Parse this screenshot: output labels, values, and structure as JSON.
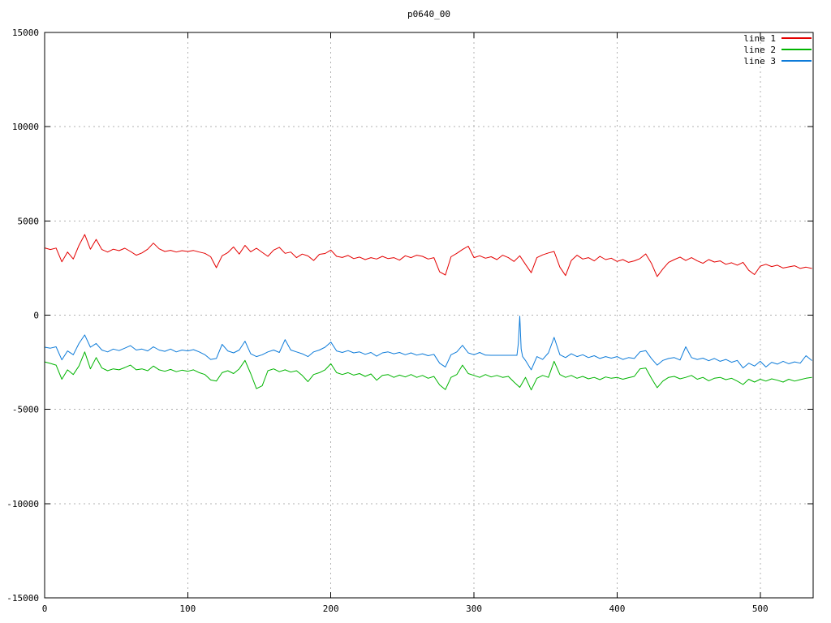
{
  "chart_data": {
    "type": "line",
    "title": "p0640_00",
    "xlabel": "",
    "ylabel": "",
    "xlim": [
      0,
      537
    ],
    "ylim": [
      -15000,
      15000
    ],
    "x_ticks": [
      0,
      100,
      200,
      300,
      400,
      500
    ],
    "y_ticks": [
      -15000,
      -10000,
      -5000,
      0,
      5000,
      10000,
      15000
    ],
    "grid": true,
    "grid_color": "#b0b0b0",
    "border_color": "#000000",
    "text_color": "#000000",
    "background": "#ffffff",
    "legend_position": "top-right-inside",
    "x": [
      0,
      4,
      8,
      12,
      16,
      20,
      24,
      28,
      32,
      36,
      40,
      44,
      48,
      52,
      56,
      60,
      64,
      68,
      72,
      76,
      80,
      84,
      88,
      92,
      96,
      100,
      104,
      108,
      112,
      116,
      120,
      124,
      128,
      132,
      136,
      140,
      144,
      148,
      152,
      156,
      160,
      164,
      168,
      172,
      176,
      180,
      184,
      188,
      192,
      196,
      200,
      204,
      208,
      212,
      216,
      220,
      224,
      228,
      232,
      236,
      240,
      244,
      248,
      252,
      256,
      260,
      264,
      268,
      272,
      276,
      280,
      284,
      288,
      292,
      296,
      300,
      304,
      308,
      312,
      316,
      320,
      324,
      328,
      332,
      336,
      340,
      344,
      348,
      352,
      356,
      360,
      364,
      368,
      372,
      376,
      380,
      384,
      388,
      392,
      396,
      400,
      404,
      408,
      412,
      416,
      420,
      424,
      428,
      432,
      436,
      440,
      444,
      448,
      452,
      456,
      460,
      464,
      468,
      472,
      476,
      480,
      484,
      488,
      492,
      496,
      500,
      504,
      508,
      512,
      516,
      520,
      524,
      528,
      532,
      536
    ],
    "series": [
      {
        "name": "line 1",
        "color": "#e40000",
        "y": [
          3570,
          3480,
          3560,
          2830,
          3350,
          2980,
          3700,
          4280,
          3500,
          4020,
          3480,
          3350,
          3500,
          3420,
          3550,
          3380,
          3180,
          3300,
          3500,
          3820,
          3520,
          3380,
          3440,
          3350,
          3420,
          3380,
          3430,
          3350,
          3280,
          3100,
          2520,
          3150,
          3320,
          3620,
          3240,
          3700,
          3360,
          3550,
          3330,
          3120,
          3450,
          3600,
          3280,
          3350,
          3050,
          3240,
          3140,
          2900,
          3230,
          3270,
          3450,
          3120,
          3060,
          3170,
          3000,
          3080,
          2950,
          3050,
          2980,
          3120,
          3000,
          3050,
          2920,
          3150,
          3050,
          3180,
          3120,
          2980,
          3050,
          2300,
          2130,
          3100,
          3280,
          3480,
          3660,
          3050,
          3150,
          3020,
          3100,
          2950,
          3180,
          3050,
          2850,
          3150,
          2700,
          2250,
          3050,
          3200,
          3300,
          3380,
          2550,
          2100,
          2900,
          3180,
          2980,
          3050,
          2880,
          3120,
          2950,
          3020,
          2850,
          2950,
          2800,
          2880,
          3000,
          3250,
          2750,
          2050,
          2450,
          2800,
          2950,
          3080,
          2900,
          3050,
          2880,
          2750,
          2950,
          2820,
          2880,
          2700,
          2780,
          2650,
          2800,
          2380,
          2150,
          2600,
          2700,
          2580,
          2650,
          2500,
          2560,
          2620,
          2480,
          2550,
          2480
        ]
      },
      {
        "name": "line 2",
        "color": "#00b400",
        "y": [
          -2480,
          -2560,
          -2650,
          -3400,
          -2900,
          -3150,
          -2700,
          -1950,
          -2850,
          -2250,
          -2800,
          -2950,
          -2850,
          -2900,
          -2780,
          -2650,
          -2900,
          -2850,
          -2950,
          -2700,
          -2900,
          -2980,
          -2880,
          -3000,
          -2920,
          -2980,
          -2900,
          -3050,
          -3150,
          -3440,
          -3500,
          -3050,
          -2950,
          -3100,
          -2850,
          -2400,
          -3100,
          -3900,
          -3750,
          -2950,
          -2850,
          -3000,
          -2900,
          -3020,
          -2950,
          -3200,
          -3530,
          -3150,
          -3050,
          -2900,
          -2580,
          -3050,
          -3150,
          -3050,
          -3180,
          -3100,
          -3250,
          -3120,
          -3450,
          -3200,
          -3150,
          -3300,
          -3180,
          -3280,
          -3150,
          -3300,
          -3200,
          -3350,
          -3250,
          -3700,
          -3950,
          -3300,
          -3150,
          -2650,
          -3100,
          -3200,
          -3300,
          -3150,
          -3280,
          -3200,
          -3300,
          -3250,
          -3550,
          -3830,
          -3300,
          -3970,
          -3350,
          -3200,
          -3300,
          -2450,
          -3150,
          -3300,
          -3200,
          -3350,
          -3250,
          -3380,
          -3300,
          -3420,
          -3280,
          -3350,
          -3300,
          -3400,
          -3320,
          -3250,
          -2850,
          -2800,
          -3350,
          -3850,
          -3500,
          -3300,
          -3250,
          -3380,
          -3300,
          -3200,
          -3400,
          -3300,
          -3480,
          -3350,
          -3300,
          -3420,
          -3350,
          -3500,
          -3680,
          -3400,
          -3550,
          -3400,
          -3500,
          -3380,
          -3450,
          -3550,
          -3400,
          -3500,
          -3420,
          -3350,
          -3300
        ]
      },
      {
        "name": "line 3",
        "color": "#0d7bd9",
        "x": [
          0,
          4,
          8,
          12,
          16,
          20,
          24,
          28,
          32,
          36,
          40,
          44,
          48,
          52,
          56,
          60,
          64,
          68,
          72,
          76,
          80,
          84,
          88,
          92,
          96,
          100,
          104,
          108,
          112,
          116,
          120,
          124,
          128,
          132,
          136,
          140,
          144,
          148,
          152,
          156,
          160,
          164,
          168,
          172,
          176,
          180,
          184,
          188,
          192,
          196,
          200,
          204,
          208,
          212,
          216,
          220,
          224,
          228,
          232,
          236,
          240,
          244,
          248,
          252,
          256,
          260,
          264,
          268,
          272,
          276,
          280,
          284,
          288,
          292,
          296,
          300,
          304,
          308,
          312,
          316,
          320,
          324,
          328,
          330,
          331,
          332,
          333,
          334,
          336,
          340,
          344,
          348,
          352,
          356,
          360,
          364,
          368,
          372,
          376,
          380,
          384,
          388,
          392,
          396,
          400,
          404,
          408,
          412,
          416,
          420,
          424,
          428,
          432,
          436,
          440,
          444,
          448,
          452,
          456,
          460,
          464,
          468,
          472,
          476,
          480,
          484,
          488,
          492,
          496,
          500,
          504,
          508,
          512,
          516,
          520,
          524,
          528,
          532,
          536
        ],
        "y": [
          -1700,
          -1750,
          -1680,
          -2370,
          -1900,
          -2100,
          -1500,
          -1050,
          -1700,
          -1500,
          -1850,
          -1950,
          -1800,
          -1880,
          -1750,
          -1620,
          -1850,
          -1800,
          -1900,
          -1680,
          -1850,
          -1920,
          -1800,
          -1950,
          -1850,
          -1900,
          -1830,
          -1950,
          -2100,
          -2350,
          -2300,
          -1550,
          -1900,
          -2000,
          -1850,
          -1380,
          -2050,
          -2200,
          -2100,
          -1950,
          -1850,
          -1980,
          -1300,
          -1850,
          -1950,
          -2050,
          -2200,
          -1950,
          -1850,
          -1700,
          -1430,
          -1900,
          -1980,
          -1880,
          -2000,
          -1950,
          -2080,
          -1980,
          -2180,
          -2000,
          -1950,
          -2050,
          -1980,
          -2100,
          -2000,
          -2120,
          -2050,
          -2150,
          -2080,
          -2550,
          -2750,
          -2100,
          -1950,
          -1600,
          -2000,
          -2100,
          -1980,
          -2120,
          -2130,
          -2130,
          -2130,
          -2130,
          -2130,
          -2130,
          -1500,
          -50,
          -1800,
          -2200,
          -2400,
          -2900,
          -2200,
          -2350,
          -2000,
          -1180,
          -2100,
          -2250,
          -2050,
          -2200,
          -2100,
          -2250,
          -2150,
          -2300,
          -2200,
          -2280,
          -2200,
          -2350,
          -2250,
          -2300,
          -1950,
          -1880,
          -2300,
          -2650,
          -2400,
          -2300,
          -2250,
          -2380,
          -1680,
          -2250,
          -2350,
          -2280,
          -2420,
          -2300,
          -2450,
          -2350,
          -2500,
          -2400,
          -2800,
          -2550,
          -2700,
          -2450,
          -2750,
          -2500,
          -2600,
          -2450,
          -2580,
          -2480,
          -2550,
          -2150,
          -2400
        ]
      }
    ]
  },
  "legend": {
    "items": [
      {
        "label": "line 1"
      },
      {
        "label": "line 2"
      },
      {
        "label": "line 3"
      }
    ]
  }
}
